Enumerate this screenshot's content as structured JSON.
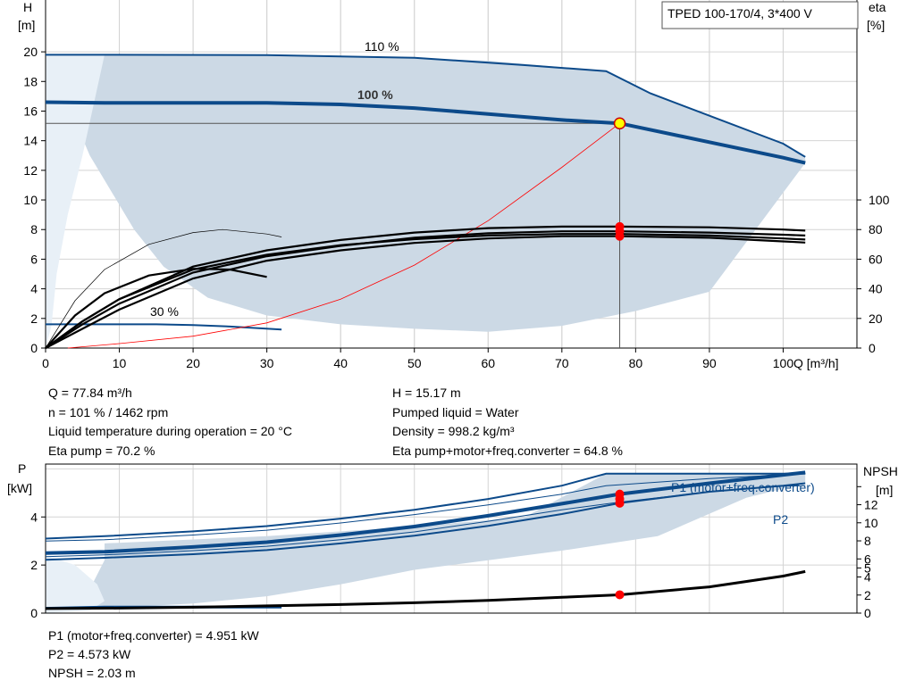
{
  "chart_data": [
    {
      "type": "line",
      "title": "TPED 100-170/4, 3*400 V",
      "xlabel": "Q [m³/h]",
      "ylabel_left_unit": "H",
      "ylabel_left_bracket": "[m]",
      "ylabel_right_unit": "eta",
      "ylabel_right_bracket": "[%]",
      "xlim": [
        0,
        110
      ],
      "ylim_left": [
        0,
        23.5
      ],
      "ylim_right": [
        0,
        235
      ],
      "x_ticks": [
        0,
        10,
        20,
        30,
        40,
        50,
        60,
        70,
        80,
        90,
        100
      ],
      "y_left_ticks": [
        0,
        2,
        4,
        6,
        8,
        10,
        12,
        14,
        16,
        18,
        20
      ],
      "y_right_ticks": [
        0,
        20,
        40,
        60,
        80,
        100
      ],
      "grid": true,
      "labels": {
        "h110": "110 %",
        "h100": "100 %",
        "h30": "30 %"
      },
      "operating_region": [
        [
          0,
          19.8
        ],
        [
          0.5,
          19.8
        ],
        [
          3,
          16.5
        ],
        [
          6,
          13
        ],
        [
          9,
          10.5
        ],
        [
          12,
          8
        ],
        [
          16,
          5.5
        ],
        [
          22,
          3.4
        ],
        [
          30,
          2.2
        ],
        [
          40,
          1.6
        ],
        [
          50,
          1.3
        ],
        [
          60,
          1.1
        ],
        [
          70,
          1.5
        ],
        [
          80,
          2.5
        ],
        [
          90,
          3.8
        ],
        [
          103,
          12.5
        ],
        [
          103,
          12.8
        ],
        [
          100,
          13.8
        ],
        [
          91,
          15.5
        ],
        [
          82,
          17.2
        ],
        [
          76,
          18.7
        ],
        [
          60,
          19.4
        ],
        [
          40,
          19.7
        ],
        [
          8,
          19.8
        ]
      ],
      "operating_region_inner": [
        [
          0,
          19.8
        ],
        [
          3,
          19.8
        ],
        [
          8,
          19.8
        ],
        [
          5,
          13
        ],
        [
          3,
          9
        ],
        [
          1.5,
          5
        ],
        [
          0.8,
          1.5
        ],
        [
          0,
          0
        ]
      ],
      "series": [
        {
          "name": "110 %",
          "points": [
            [
              0,
              19.8
            ],
            [
              8,
              19.8
            ],
            [
              30,
              19.78
            ],
            [
              50,
              19.6
            ],
            [
              65,
              19.1
            ],
            [
              76,
              18.7
            ],
            [
              82,
              17.2
            ],
            [
              91,
              15.5
            ],
            [
              100,
              13.8
            ],
            [
              103,
              12.9
            ]
          ]
        },
        {
          "name": "100 %",
          "points": [
            [
              0,
              16.6
            ],
            [
              8,
              16.55
            ],
            [
              20,
              16.55
            ],
            [
              30,
              16.55
            ],
            [
              40,
              16.45
            ],
            [
              50,
              16.2
            ],
            [
              60,
              15.8
            ],
            [
              70,
              15.4
            ],
            [
              77.84,
              15.17
            ],
            [
              90,
              13.9
            ],
            [
              100,
              12.85
            ],
            [
              103,
              12.5
            ]
          ]
        },
        {
          "name": "30 %",
          "points": [
            [
              0,
              1.6
            ],
            [
              8,
              1.6
            ],
            [
              15,
              1.6
            ],
            [
              20,
              1.55
            ],
            [
              25,
              1.45
            ],
            [
              32,
              1.25
            ]
          ]
        },
        {
          "name": "",
          "points": [
            [
              3,
              0
            ],
            [
              10,
              0.3
            ],
            [
              20,
              0.8
            ],
            [
              30,
              1.7
            ],
            [
              40,
              3.3
            ],
            [
              50,
              5.6
            ],
            [
              60,
              8.6
            ],
            [
              70,
              12.2
            ],
            [
              77.84,
              15.17
            ]
          ]
        }
      ],
      "eta_series": [
        {
          "points": [
            [
              0,
              0
            ],
            [
              5,
              18
            ],
            [
              10,
              33
            ],
            [
              20,
              55
            ],
            [
              30,
              66
            ],
            [
              40,
              73
            ],
            [
              50,
              78
            ],
            [
              60,
              81
            ],
            [
              70,
              82
            ],
            [
              77.84,
              82
            ],
            [
              90,
              81.5
            ],
            [
              100,
              80
            ],
            [
              103,
              79.3
            ]
          ]
        },
        {
          "points": [
            [
              0,
              0
            ],
            [
              5,
              16
            ],
            [
              10,
              30
            ],
            [
              20,
              51
            ],
            [
              30,
              62
            ],
            [
              40,
              69
            ],
            [
              50,
              74.5
            ],
            [
              60,
              77.5
            ],
            [
              70,
              78.8
            ],
            [
              77.84,
              78.8
            ],
            [
              90,
              78
            ],
            [
              100,
              76.5
            ],
            [
              103,
              76
            ]
          ]
        },
        {
          "points": [
            [
              0,
              0
            ],
            [
              5,
              18
            ],
            [
              10,
              33
            ],
            [
              20,
              53
            ],
            [
              30,
              63
            ],
            [
              40,
              69.5
            ],
            [
              50,
              73.5
            ],
            [
              60,
              76
            ],
            [
              70,
              77
            ],
            [
              77.84,
              77
            ],
            [
              90,
              76
            ],
            [
              100,
              74
            ],
            [
              103,
              73.3
            ]
          ]
        },
        {
          "points": [
            [
              0,
              0
            ],
            [
              5,
              13
            ],
            [
              10,
              26
            ],
            [
              20,
              47
            ],
            [
              30,
              59
            ],
            [
              40,
              66
            ],
            [
              50,
              71
            ],
            [
              60,
              74
            ],
            [
              70,
              75.5
            ],
            [
              77.84,
              75.5
            ],
            [
              90,
              74.5
            ],
            [
              100,
              72
            ],
            [
              103,
              71.2
            ]
          ]
        },
        {
          "points": [
            [
              0,
              0
            ],
            [
              4,
              22
            ],
            [
              8,
              37
            ],
            [
              14,
              49
            ],
            [
              20,
              53.5
            ],
            [
              25,
              53
            ],
            [
              30,
              48
            ]
          ]
        },
        {
          "points": [
            [
              0,
              0
            ],
            [
              4,
              32
            ],
            [
              8,
              53
            ],
            [
              14,
              70
            ],
            [
              20,
              78
            ],
            [
              24,
              80
            ],
            [
              30,
              77
            ],
            [
              32,
              75
            ]
          ]
        }
      ],
      "operating_point": {
        "x": 77.84,
        "h": 15.17,
        "eta_points": [
          82,
          78.8,
          75.5
        ]
      }
    },
    {
      "type": "line",
      "ylabel_left_unit": "P",
      "ylabel_left_bracket": "[kW]",
      "ylabel_right_unit": "NPSH",
      "ylabel_right_bracket": "[m]",
      "xlim": [
        0,
        110
      ],
      "ylim_left": [
        0,
        6.2
      ],
      "ylim_right": [
        0,
        16.5
      ],
      "y_left_ticks": [
        0,
        2,
        4
      ],
      "y_right_ticks": [
        0,
        2,
        4,
        5,
        6,
        8,
        10,
        12,
        14
      ],
      "y_right_tick_labels": [
        "0",
        "2",
        "4",
        "5",
        "6",
        "8",
        "10",
        "12",
        ""
      ],
      "grid": true,
      "labels": {
        "p1": "P1 (motor+freq.converter)",
        "p2": "P2"
      },
      "operating_region": [
        [
          0,
          0.3
        ],
        [
          3,
          0.5
        ],
        [
          6,
          1.0
        ],
        [
          8,
          2.2
        ],
        [
          8,
          2.9
        ],
        [
          30,
          3.2
        ],
        [
          50,
          3.6
        ],
        [
          65,
          4.0
        ],
        [
          76,
          5.8
        ],
        [
          103,
          5.8
        ],
        [
          103,
          5.4
        ],
        [
          95,
          4.8
        ],
        [
          83,
          3.2
        ],
        [
          70,
          2.6
        ],
        [
          50,
          1.8
        ],
        [
          40,
          1.2
        ],
        [
          30,
          0.7
        ],
        [
          20,
          0.4
        ],
        [
          8,
          0.2
        ]
      ],
      "series": [
        {
          "name": "P1 (motor+freq.converter)",
          "points": [
            [
              0,
              2.5
            ],
            [
              8,
              2.55
            ],
            [
              20,
              2.75
            ],
            [
              30,
              2.95
            ],
            [
              40,
              3.25
            ],
            [
              50,
              3.6
            ],
            [
              60,
              4.05
            ],
            [
              70,
              4.55
            ],
            [
              77.84,
              4.951
            ],
            [
              90,
              5.4
            ],
            [
              100,
              5.75
            ],
            [
              103,
              5.85
            ]
          ]
        },
        {
          "name": "",
          "points": [
            [
              0,
              2.35
            ],
            [
              8,
              2.42
            ],
            [
              20,
              2.6
            ],
            [
              30,
              2.78
            ],
            [
              40,
              3.05
            ],
            [
              50,
              3.38
            ],
            [
              60,
              3.82
            ],
            [
              70,
              4.3
            ],
            [
              77.84,
              4.62
            ],
            [
              90,
              5.05
            ],
            [
              100,
              5.28
            ],
            [
              103,
              5.3
            ]
          ]
        },
        {
          "name": "P2",
          "points": [
            [
              0,
              2.22
            ],
            [
              8,
              2.3
            ],
            [
              20,
              2.45
            ],
            [
              30,
              2.62
            ],
            [
              40,
              2.9
            ],
            [
              50,
              3.22
            ],
            [
              60,
              3.63
            ],
            [
              70,
              4.12
            ],
            [
              77.84,
              4.573
            ],
            [
              90,
              5.05
            ],
            [
              100,
              5.3
            ],
            [
              103,
              5.4
            ]
          ]
        },
        {
          "name": "",
          "points": [
            [
              0,
              3.0
            ],
            [
              8,
              3.05
            ],
            [
              20,
              3.25
            ],
            [
              30,
              3.45
            ],
            [
              40,
              3.75
            ],
            [
              50,
              4.1
            ],
            [
              60,
              4.5
            ],
            [
              70,
              4.95
            ],
            [
              76,
              5.3
            ],
            [
              90,
              5.6
            ],
            [
              100,
              5.75
            ],
            [
              103,
              5.8
            ]
          ]
        },
        {
          "name": "",
          "points": [
            [
              0,
              3.1
            ],
            [
              8,
              3.2
            ],
            [
              20,
              3.4
            ],
            [
              30,
              3.62
            ],
            [
              40,
              3.93
            ],
            [
              50,
              4.3
            ],
            [
              60,
              4.75
            ],
            [
              70,
              5.3
            ],
            [
              76,
              5.8
            ],
            [
              103,
              5.8
            ]
          ]
        },
        {
          "name": "",
          "points": [
            [
              0,
              0.2
            ],
            [
              8,
              0.25
            ],
            [
              20,
              0.25
            ],
            [
              32,
              0.25
            ]
          ]
        }
      ],
      "npsh_series": {
        "points": [
          [
            0,
            0.5
          ],
          [
            10,
            0.55
          ],
          [
            20,
            0.65
          ],
          [
            30,
            0.8
          ],
          [
            40,
            0.95
          ],
          [
            50,
            1.15
          ],
          [
            60,
            1.4
          ],
          [
            70,
            1.75
          ],
          [
            77.84,
            2.03
          ],
          [
            90,
            2.9
          ],
          [
            100,
            4.1
          ],
          [
            103,
            4.6
          ]
        ]
      },
      "operating_point": {
        "x": 77.84,
        "p1": 4.951,
        "p2": 4.573,
        "p_mid": 4.75,
        "npsh": 2.03
      }
    }
  ],
  "readout_top": [
    "Q = 77.84 m³/h",
    "n = 101 % / 1462 rpm",
    "Liquid temperature during operation = 20 °C",
    "Eta pump = 70.2 %"
  ],
  "readout_top_right": [
    "H = 15.17 m",
    "Pumped liquid = Water",
    "Density = 998.2 kg/m³",
    "Eta pump+motor+freq.converter = 64.8 %"
  ],
  "readout_bottom": [
    "P1 (motor+freq.converter) = 4.951 kW",
    "P2 = 4.573 kW",
    "NPSH = 2.03 m"
  ],
  "colors": {
    "curve_blue": "#0c4a8a",
    "region_fill": "#ccd9e5",
    "region_inner": "#e8f0f7",
    "red_marker": "#ff0000",
    "yellow_marker": "#ffff00"
  }
}
